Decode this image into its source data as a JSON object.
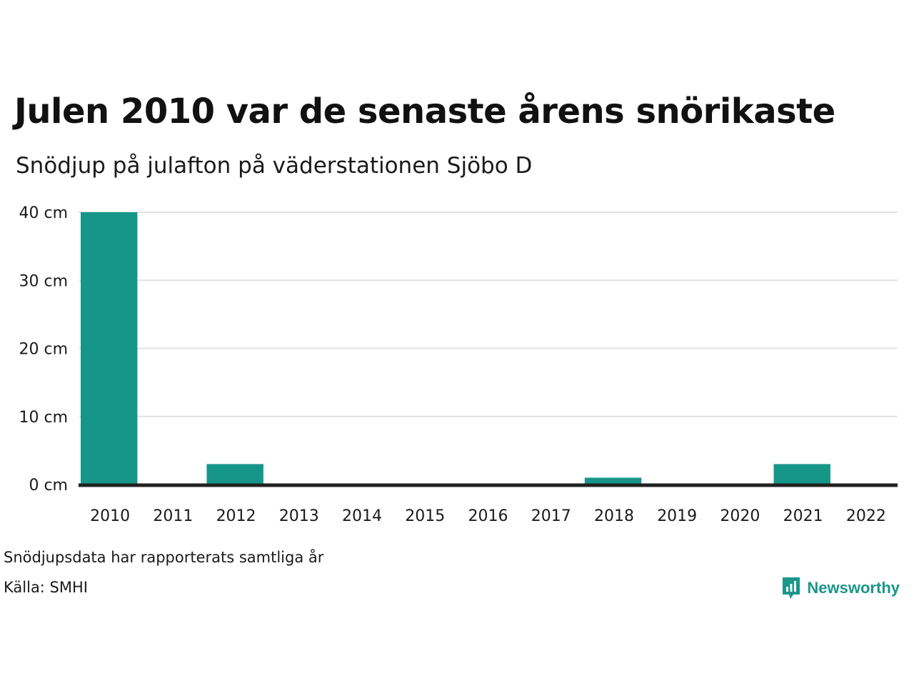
{
  "title": "Julen 2010 var de senaste årens snörikaste",
  "subtitle": "Snödjup på julafton på väderstationen Sjöbo D",
  "footnote": "Snödjupsdata har rapporterats samtliga år",
  "source": "Källa: SMHI",
  "brand": {
    "name": "Newsworthy",
    "icon": "newsworthy-logo-icon"
  },
  "colors": {
    "bar": "#169689",
    "grid": "#e2e2e2",
    "axis": "#222222",
    "brand": "#1a968a"
  },
  "chart_data": {
    "type": "bar",
    "categories": [
      "2010",
      "2011",
      "2012",
      "2013",
      "2014",
      "2015",
      "2016",
      "2017",
      "2018",
      "2019",
      "2020",
      "2021",
      "2022"
    ],
    "values": [
      40,
      0,
      3,
      0,
      0,
      0,
      0,
      0,
      1,
      0,
      0,
      3,
      0
    ],
    "ylim": [
      0,
      40
    ],
    "yticks": [
      0,
      10,
      20,
      30,
      40
    ],
    "ytick_labels": [
      "0 cm",
      "10 cm",
      "20 cm",
      "30 cm",
      "40 cm"
    ],
    "grid": true,
    "title": "Julen 2010 var de senaste årens snörikaste",
    "subtitle": "Snödjup på julafton på väderstationen Sjöbo D",
    "xlabel": "",
    "ylabel": ""
  }
}
